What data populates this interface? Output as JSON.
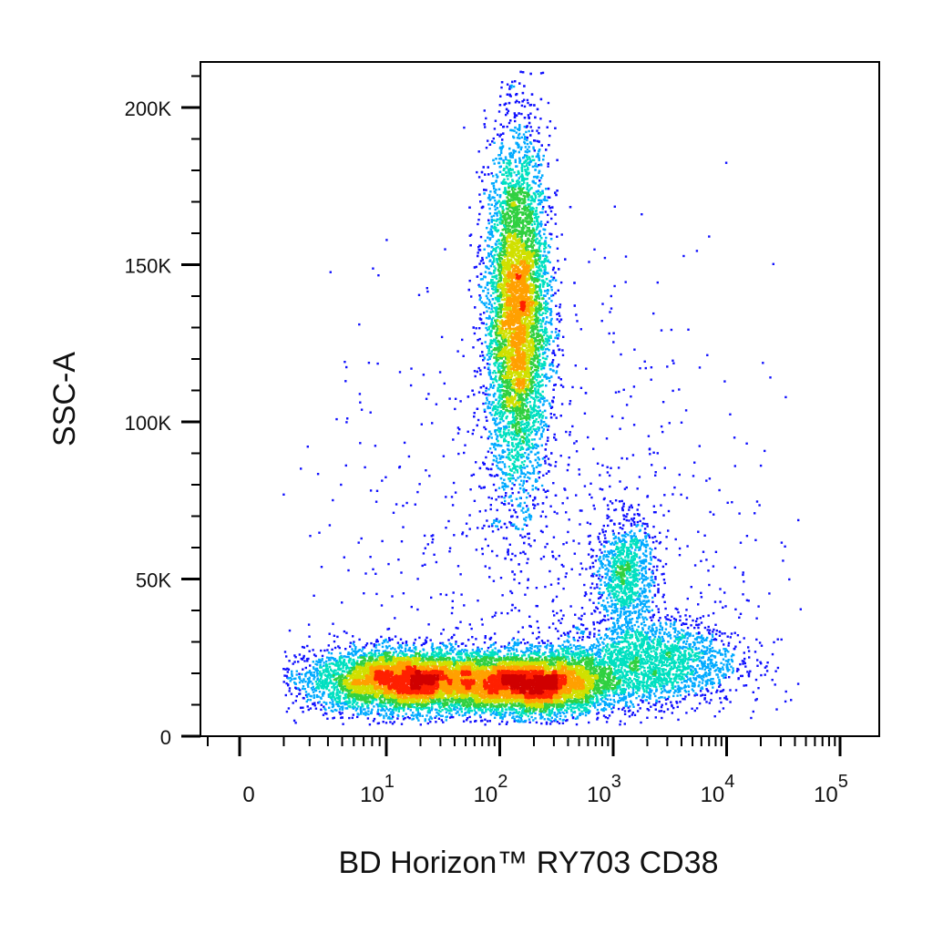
{
  "chart_data": {
    "type": "scatter",
    "style": "pseudocolor density dot plot",
    "title": "",
    "xlabel": "BD Horizon™ RY703 CD38",
    "ylabel": "SSC-A",
    "x_scale": "biexponential (log with linear region near 0)",
    "x_ticks": [
      {
        "value": 0,
        "base": "0",
        "exp": ""
      },
      {
        "value": 10,
        "base": "10",
        "exp": "1"
      },
      {
        "value": 100,
        "base": "10",
        "exp": "2"
      },
      {
        "value": 1000,
        "base": "10",
        "exp": "3"
      },
      {
        "value": 10000,
        "base": "10",
        "exp": "4"
      },
      {
        "value": 100000,
        "base": "10",
        "exp": "5"
      }
    ],
    "y_ticks": [
      {
        "value": 0,
        "label": "0"
      },
      {
        "value": 50000,
        "label": "50K"
      },
      {
        "value": 100000,
        "label": "100K"
      },
      {
        "value": 150000,
        "label": "150K"
      },
      {
        "value": 200000,
        "label": "200K"
      }
    ],
    "ylim": [
      0,
      215000
    ],
    "grid": false,
    "legend": "none",
    "density_colors": [
      "#1010ff",
      "#00aaff",
      "#00e0c0",
      "#30d040",
      "#d0e000",
      "#ffa000",
      "#ff2000",
      "#d00000"
    ],
    "populations": [
      {
        "name": "low-SSC CD38 dim/neg",
        "x_center_log10": 1.2,
        "x_spread_log10": 0.45,
        "y_center": 18000,
        "y_spread": 5000,
        "count": 6000
      },
      {
        "name": "low-SSC CD38 ~10^2",
        "x_center_log10": 2.3,
        "x_spread_log10": 0.35,
        "y_center": 17000,
        "y_spread": 5000,
        "count": 5000
      },
      {
        "name": "low-SSC CD38 bright",
        "x_center_log10": 3.3,
        "x_spread_log10": 0.4,
        "y_center": 24000,
        "y_spread": 7000,
        "count": 2200
      },
      {
        "name": "high-SSC granulocytes",
        "x_center_log10": 2.15,
        "x_spread_log10": 0.14,
        "y_center": 135000,
        "y_spread": 28000,
        "count": 8000
      },
      {
        "name": "mid-SSC CD38 10^3",
        "x_center_log10": 3.1,
        "x_spread_log10": 0.13,
        "y_center": 52000,
        "y_spread": 9000,
        "count": 1000
      },
      {
        "name": "scattered events",
        "x_center_log10": 2.4,
        "x_spread_log10": 1.0,
        "y_center": 60000,
        "y_spread": 45000,
        "count": 900
      }
    ]
  }
}
